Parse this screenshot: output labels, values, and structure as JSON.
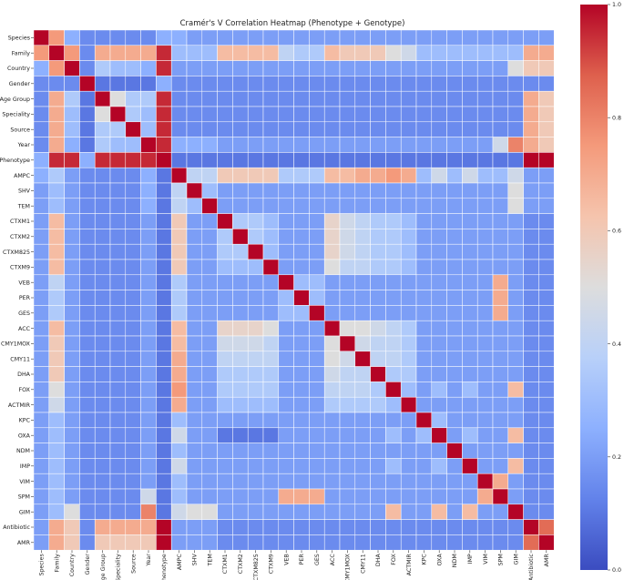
{
  "chart_data": {
    "type": "heatmap",
    "title": "Cramér's V Correlation Heatmap (Phenotype + Genotype)",
    "labels": [
      "Species",
      "Family",
      "Country",
      "Gender",
      "Age Group",
      "Speciality",
      "Source",
      "Year",
      "Phenotype",
      "AMPC",
      "SHV",
      "TEM",
      "CTXM1",
      "CTXM2",
      "CTXM825",
      "CTXM9",
      "VEB",
      "PER",
      "GES",
      "ACC",
      "CMY1MOX",
      "CMY11",
      "DHA",
      "FOX",
      "ACTMIR",
      "KPC",
      "OXA",
      "NDM",
      "IMP",
      "VIM",
      "SPM",
      "GIM",
      "Antibiotic",
      "AMR"
    ],
    "values": [
      [
        1,
        0.75,
        0.25,
        0.15,
        0.15,
        0.15,
        0.15,
        0.15,
        0.25,
        0.25,
        0.2,
        0.2,
        0.2,
        0.2,
        0.2,
        0.2,
        0.2,
        0.2,
        0.2,
        0.2,
        0.2,
        0.2,
        0.2,
        0.2,
        0.2,
        0.2,
        0.2,
        0.2,
        0.2,
        0.2,
        0.2,
        0.2,
        0.2,
        0.2
      ],
      [
        0.75,
        1,
        0.75,
        0.15,
        0.7,
        0.7,
        0.7,
        0.7,
        0.95,
        0.3,
        0.3,
        0.3,
        0.65,
        0.65,
        0.65,
        0.65,
        0.4,
        0.35,
        0.35,
        0.65,
        0.6,
        0.6,
        0.6,
        0.5,
        0.45,
        0.3,
        0.3,
        0.3,
        0.3,
        0.3,
        0.3,
        0.3,
        0.7,
        0.7
      ],
      [
        0.25,
        0.75,
        1,
        0.15,
        0.35,
        0.3,
        0.3,
        0.25,
        0.95,
        0.2,
        0.2,
        0.2,
        0.2,
        0.2,
        0.2,
        0.2,
        0.2,
        0.2,
        0.2,
        0.2,
        0.2,
        0.2,
        0.2,
        0.2,
        0.2,
        0.2,
        0.2,
        0.2,
        0.2,
        0.2,
        0.2,
        0.5,
        0.6,
        0.6
      ],
      [
        0.15,
        0.15,
        0.15,
        1,
        0.1,
        0.1,
        0.1,
        0.1,
        0.25,
        0.15,
        0.15,
        0.15,
        0.15,
        0.15,
        0.15,
        0.15,
        0.15,
        0.15,
        0.15,
        0.15,
        0.15,
        0.15,
        0.15,
        0.15,
        0.15,
        0.15,
        0.15,
        0.15,
        0.15,
        0.15,
        0.15,
        0.15,
        0.15,
        0.15
      ],
      [
        0.15,
        0.7,
        0.35,
        0.1,
        1,
        0.5,
        0.35,
        0.35,
        0.95,
        0.15,
        0.15,
        0.15,
        0.15,
        0.15,
        0.15,
        0.15,
        0.15,
        0.15,
        0.15,
        0.15,
        0.15,
        0.15,
        0.15,
        0.15,
        0.15,
        0.15,
        0.15,
        0.15,
        0.15,
        0.15,
        0.15,
        0.15,
        0.7,
        0.6
      ],
      [
        0.15,
        0.7,
        0.3,
        0.1,
        0.5,
        1,
        0.35,
        0.3,
        0.95,
        0.15,
        0.15,
        0.15,
        0.15,
        0.15,
        0.15,
        0.15,
        0.15,
        0.15,
        0.15,
        0.15,
        0.15,
        0.15,
        0.15,
        0.15,
        0.15,
        0.15,
        0.15,
        0.15,
        0.15,
        0.15,
        0.15,
        0.15,
        0.7,
        0.6
      ],
      [
        0.15,
        0.7,
        0.3,
        0.1,
        0.35,
        0.35,
        1,
        0.3,
        0.95,
        0.15,
        0.15,
        0.15,
        0.15,
        0.15,
        0.15,
        0.15,
        0.15,
        0.15,
        0.15,
        0.15,
        0.15,
        0.15,
        0.15,
        0.15,
        0.15,
        0.15,
        0.15,
        0.15,
        0.15,
        0.15,
        0.15,
        0.15,
        0.7,
        0.6
      ],
      [
        0.15,
        0.7,
        0.25,
        0.1,
        0.35,
        0.3,
        0.3,
        1,
        0.95,
        0.25,
        0.25,
        0.25,
        0.2,
        0.2,
        0.2,
        0.2,
        0.2,
        0.2,
        0.2,
        0.2,
        0.2,
        0.2,
        0.2,
        0.2,
        0.2,
        0.2,
        0.2,
        0.2,
        0.2,
        0.2,
        0.45,
        0.8,
        0.7,
        0.6
      ],
      [
        0.25,
        0.95,
        0.95,
        0.25,
        0.95,
        0.95,
        0.95,
        0.95,
        1,
        0.1,
        0.1,
        0.1,
        0.1,
        0.1,
        0.1,
        0.1,
        0.1,
        0.1,
        0.1,
        0.1,
        0.1,
        0.1,
        0.1,
        0.1,
        0.1,
        0.1,
        0.1,
        0.1,
        0.1,
        0.1,
        0.1,
        0.1,
        1,
        1
      ],
      [
        0.25,
        0.35,
        0.2,
        0.15,
        0.15,
        0.15,
        0.15,
        0.25,
        0.1,
        1,
        0.4,
        0.4,
        0.6,
        0.6,
        0.6,
        0.6,
        0.35,
        0.35,
        0.35,
        0.65,
        0.65,
        0.7,
        0.7,
        0.75,
        0.7,
        0.3,
        0.45,
        0.3,
        0.45,
        0.3,
        0.3,
        0.45,
        0.2,
        0.2
      ],
      [
        0.2,
        0.3,
        0.2,
        0.15,
        0.15,
        0.15,
        0.15,
        0.25,
        0.1,
        0.4,
        1,
        0.3,
        0.2,
        0.2,
        0.2,
        0.2,
        0.2,
        0.2,
        0.2,
        0.2,
        0.2,
        0.2,
        0.2,
        0.2,
        0.2,
        0.2,
        0.2,
        0.2,
        0.2,
        0.2,
        0.2,
        0.5,
        0.2,
        0.2
      ],
      [
        0.2,
        0.3,
        0.2,
        0.15,
        0.15,
        0.15,
        0.15,
        0.25,
        0.1,
        0.4,
        0.3,
        1,
        0.2,
        0.2,
        0.2,
        0.2,
        0.2,
        0.2,
        0.2,
        0.2,
        0.2,
        0.2,
        0.2,
        0.2,
        0.2,
        0.2,
        0.2,
        0.2,
        0.2,
        0.2,
        0.2,
        0.5,
        0.2,
        0.2
      ],
      [
        0.2,
        0.65,
        0.2,
        0.15,
        0.15,
        0.15,
        0.15,
        0.2,
        0.1,
        0.6,
        0.2,
        0.2,
        1,
        0.35,
        0.35,
        0.3,
        0.2,
        0.2,
        0.2,
        0.55,
        0.45,
        0.4,
        0.35,
        0.35,
        0.3,
        0.2,
        0.2,
        0.2,
        0.2,
        0.2,
        0.2,
        0.2,
        0.15,
        0.15
      ],
      [
        0.2,
        0.65,
        0.2,
        0.15,
        0.15,
        0.15,
        0.15,
        0.2,
        0.1,
        0.6,
        0.2,
        0.2,
        0.35,
        1,
        0.35,
        0.3,
        0.2,
        0.2,
        0.2,
        0.55,
        0.45,
        0.4,
        0.35,
        0.35,
        0.3,
        0.2,
        0.2,
        0.2,
        0.2,
        0.2,
        0.2,
        0.2,
        0.15,
        0.15
      ],
      [
        0.2,
        0.65,
        0.2,
        0.15,
        0.15,
        0.15,
        0.15,
        0.2,
        0.1,
        0.6,
        0.2,
        0.2,
        0.35,
        0.35,
        1,
        0.3,
        0.2,
        0.2,
        0.2,
        0.55,
        0.45,
        0.4,
        0.35,
        0.35,
        0.3,
        0.2,
        0.2,
        0.2,
        0.2,
        0.2,
        0.2,
        0.2,
        0.15,
        0.15
      ],
      [
        0.2,
        0.65,
        0.2,
        0.15,
        0.15,
        0.15,
        0.15,
        0.2,
        0.1,
        0.6,
        0.2,
        0.2,
        0.3,
        0.3,
        0.3,
        1,
        0.2,
        0.2,
        0.2,
        0.5,
        0.4,
        0.4,
        0.35,
        0.35,
        0.3,
        0.2,
        0.2,
        0.2,
        0.2,
        0.2,
        0.2,
        0.2,
        0.15,
        0.15
      ],
      [
        0.2,
        0.4,
        0.2,
        0.15,
        0.15,
        0.15,
        0.15,
        0.2,
        0.1,
        0.35,
        0.2,
        0.2,
        0.2,
        0.2,
        0.2,
        0.2,
        1,
        0.3,
        0.3,
        0.2,
        0.2,
        0.2,
        0.2,
        0.2,
        0.2,
        0.2,
        0.2,
        0.2,
        0.2,
        0.2,
        0.7,
        0.2,
        0.15,
        0.15
      ],
      [
        0.2,
        0.35,
        0.2,
        0.15,
        0.15,
        0.15,
        0.15,
        0.2,
        0.1,
        0.35,
        0.2,
        0.2,
        0.2,
        0.2,
        0.2,
        0.2,
        0.3,
        1,
        0.3,
        0.2,
        0.2,
        0.2,
        0.2,
        0.2,
        0.2,
        0.2,
        0.2,
        0.2,
        0.2,
        0.2,
        0.7,
        0.2,
        0.15,
        0.15
      ],
      [
        0.2,
        0.35,
        0.2,
        0.15,
        0.15,
        0.15,
        0.15,
        0.2,
        0.1,
        0.35,
        0.2,
        0.2,
        0.2,
        0.2,
        0.2,
        0.2,
        0.3,
        0.3,
        1,
        0.2,
        0.2,
        0.2,
        0.2,
        0.2,
        0.2,
        0.2,
        0.2,
        0.2,
        0.2,
        0.2,
        0.7,
        0.2,
        0.15,
        0.15
      ],
      [
        0.2,
        0.65,
        0.2,
        0.15,
        0.15,
        0.15,
        0.15,
        0.2,
        0.1,
        0.65,
        0.2,
        0.2,
        0.55,
        0.55,
        0.55,
        0.5,
        0.2,
        0.2,
        0.2,
        1,
        0.5,
        0.5,
        0.45,
        0.4,
        0.35,
        0.2,
        0.2,
        0.2,
        0.2,
        0.2,
        0.2,
        0.2,
        0.15,
        0.15
      ],
      [
        0.2,
        0.6,
        0.2,
        0.15,
        0.15,
        0.15,
        0.15,
        0.2,
        0.1,
        0.65,
        0.2,
        0.2,
        0.45,
        0.45,
        0.45,
        0.4,
        0.2,
        0.2,
        0.2,
        0.5,
        1,
        0.45,
        0.4,
        0.4,
        0.35,
        0.2,
        0.2,
        0.2,
        0.2,
        0.2,
        0.2,
        0.2,
        0.15,
        0.15
      ],
      [
        0.2,
        0.6,
        0.2,
        0.15,
        0.15,
        0.15,
        0.15,
        0.2,
        0.1,
        0.7,
        0.2,
        0.2,
        0.4,
        0.4,
        0.4,
        0.4,
        0.2,
        0.2,
        0.2,
        0.5,
        0.45,
        1,
        0.4,
        0.4,
        0.35,
        0.2,
        0.2,
        0.2,
        0.2,
        0.2,
        0.2,
        0.2,
        0.15,
        0.15
      ],
      [
        0.2,
        0.6,
        0.2,
        0.15,
        0.15,
        0.15,
        0.15,
        0.2,
        0.1,
        0.7,
        0.2,
        0.2,
        0.35,
        0.35,
        0.35,
        0.35,
        0.2,
        0.2,
        0.2,
        0.45,
        0.4,
        0.4,
        1,
        0.35,
        0.35,
        0.2,
        0.2,
        0.2,
        0.2,
        0.2,
        0.2,
        0.2,
        0.15,
        0.15
      ],
      [
        0.2,
        0.5,
        0.2,
        0.15,
        0.15,
        0.15,
        0.15,
        0.2,
        0.1,
        0.75,
        0.2,
        0.2,
        0.35,
        0.35,
        0.35,
        0.35,
        0.2,
        0.2,
        0.2,
        0.4,
        0.4,
        0.4,
        0.35,
        1,
        0.3,
        0.2,
        0.3,
        0.2,
        0.3,
        0.2,
        0.2,
        0.65,
        0.15,
        0.15
      ],
      [
        0.2,
        0.45,
        0.2,
        0.15,
        0.15,
        0.15,
        0.15,
        0.2,
        0.1,
        0.7,
        0.2,
        0.2,
        0.3,
        0.3,
        0.3,
        0.3,
        0.2,
        0.2,
        0.2,
        0.35,
        0.35,
        0.35,
        0.35,
        0.3,
        1,
        0.2,
        0.2,
        0.2,
        0.2,
        0.2,
        0.2,
        0.2,
        0.15,
        0.15
      ],
      [
        0.2,
        0.3,
        0.2,
        0.15,
        0.15,
        0.15,
        0.15,
        0.2,
        0.1,
        0.3,
        0.2,
        0.2,
        0.2,
        0.2,
        0.2,
        0.2,
        0.2,
        0.2,
        0.2,
        0.2,
        0.2,
        0.2,
        0.2,
        0.2,
        0.2,
        1,
        0.3,
        0.2,
        0.2,
        0.2,
        0.2,
        0.2,
        0.15,
        0.15
      ],
      [
        0.2,
        0.3,
        0.2,
        0.15,
        0.15,
        0.15,
        0.15,
        0.2,
        0.1,
        0.45,
        0.2,
        0.2,
        0.1,
        0.1,
        0.1,
        0.1,
        0.2,
        0.2,
        0.2,
        0.2,
        0.2,
        0.2,
        0.2,
        0.3,
        0.2,
        0.3,
        1,
        0.2,
        0.3,
        0.2,
        0.2,
        0.65,
        0.15,
        0.15
      ],
      [
        0.2,
        0.3,
        0.2,
        0.15,
        0.15,
        0.15,
        0.15,
        0.2,
        0.1,
        0.3,
        0.2,
        0.2,
        0.2,
        0.2,
        0.2,
        0.2,
        0.2,
        0.2,
        0.2,
        0.2,
        0.2,
        0.2,
        0.2,
        0.2,
        0.2,
        0.2,
        0.2,
        1,
        0.2,
        0.2,
        0.2,
        0.2,
        0.15,
        0.15
      ],
      [
        0.2,
        0.3,
        0.2,
        0.15,
        0.15,
        0.15,
        0.15,
        0.2,
        0.1,
        0.45,
        0.2,
        0.2,
        0.2,
        0.2,
        0.2,
        0.2,
        0.2,
        0.2,
        0.2,
        0.2,
        0.2,
        0.2,
        0.2,
        0.3,
        0.2,
        0.2,
        0.3,
        0.2,
        1,
        0.2,
        0.2,
        0.65,
        0.15,
        0.15
      ],
      [
        0.2,
        0.3,
        0.2,
        0.15,
        0.15,
        0.15,
        0.15,
        0.2,
        0.1,
        0.3,
        0.2,
        0.2,
        0.2,
        0.2,
        0.2,
        0.2,
        0.2,
        0.2,
        0.2,
        0.2,
        0.2,
        0.2,
        0.2,
        0.2,
        0.2,
        0.2,
        0.2,
        0.2,
        0.2,
        1,
        0.7,
        0.2,
        0.15,
        0.15
      ],
      [
        0.2,
        0.3,
        0.2,
        0.15,
        0.15,
        0.15,
        0.15,
        0.45,
        0.1,
        0.3,
        0.2,
        0.2,
        0.2,
        0.2,
        0.2,
        0.2,
        0.7,
        0.7,
        0.7,
        0.2,
        0.2,
        0.2,
        0.2,
        0.2,
        0.2,
        0.2,
        0.2,
        0.2,
        0.2,
        0.7,
        1,
        0.2,
        0.15,
        0.15
      ],
      [
        0.2,
        0.3,
        0.5,
        0.15,
        0.15,
        0.15,
        0.15,
        0.8,
        0.1,
        0.45,
        0.5,
        0.5,
        0.2,
        0.2,
        0.2,
        0.2,
        0.2,
        0.2,
        0.2,
        0.2,
        0.2,
        0.2,
        0.2,
        0.65,
        0.2,
        0.2,
        0.65,
        0.2,
        0.65,
        0.2,
        0.2,
        1,
        0.15,
        0.15
      ],
      [
        0.2,
        0.7,
        0.6,
        0.15,
        0.7,
        0.7,
        0.7,
        0.7,
        1,
        0.2,
        0.2,
        0.2,
        0.15,
        0.15,
        0.15,
        0.15,
        0.15,
        0.15,
        0.15,
        0.15,
        0.15,
        0.15,
        0.15,
        0.15,
        0.15,
        0.15,
        0.15,
        0.15,
        0.15,
        0.15,
        0.15,
        0.15,
        1,
        0.85
      ],
      [
        0.2,
        0.7,
        0.6,
        0.15,
        0.6,
        0.6,
        0.6,
        0.6,
        1,
        0.2,
        0.2,
        0.2,
        0.15,
        0.15,
        0.15,
        0.15,
        0.15,
        0.15,
        0.15,
        0.15,
        0.15,
        0.15,
        0.15,
        0.15,
        0.15,
        0.15,
        0.15,
        0.15,
        0.15,
        0.15,
        0.15,
        0.15,
        0.85,
        1
      ]
    ],
    "zlim": [
      0,
      1
    ],
    "colormap": "coolwarm",
    "colorbar": {
      "position": "right",
      "ticks": [
        "0.0",
        "0.2",
        "0.4",
        "0.6",
        "0.8",
        "1.0"
      ],
      "tick_values": [
        0,
        0.2,
        0.4,
        0.6,
        0.8,
        1.0
      ]
    }
  }
}
